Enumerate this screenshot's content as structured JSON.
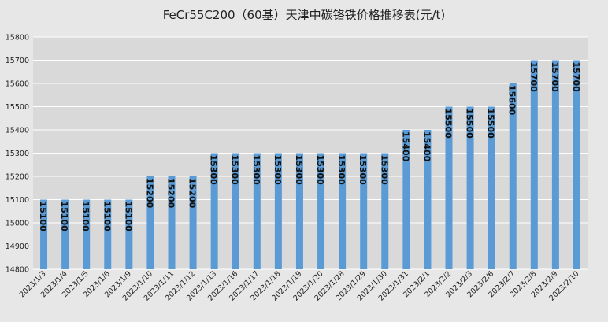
{
  "chart_data": {
    "type": "bar",
    "title": "FeCr55C200（60基）天津中碳铬铁价格推移表(元/t)",
    "xlabel": "",
    "ylabel": "",
    "ylim": [
      14800,
      15800
    ],
    "yticks": [
      14800,
      14900,
      15000,
      15100,
      15200,
      15300,
      15400,
      15500,
      15600,
      15700,
      15800
    ],
    "grid": true,
    "legend": "none",
    "bar_color": "#5b9bd5",
    "plot_background": "#d9d9d9",
    "categories": [
      "2023/1/3",
      "2023/1/4",
      "2023/1/5",
      "2023/1/6",
      "2023/1/9",
      "2023/1/10",
      "2023/1/11",
      "2023/1/12",
      "2023/1/13",
      "2023/1/16",
      "2023/1/17",
      "2023/1/18",
      "2023/1/19",
      "2023/1/20",
      "2023/1/28",
      "2023/1/29",
      "2023/1/30",
      "2023/1/31",
      "2023/2/1",
      "2023/2/2",
      "2023/2/3",
      "2023/2/6",
      "2023/2/7",
      "2023/2/8",
      "2023/2/9",
      "2023/2/10"
    ],
    "values": [
      15100,
      15100,
      15100,
      15100,
      15100,
      15200,
      15200,
      15200,
      15300,
      15300,
      15300,
      15300,
      15300,
      15300,
      15300,
      15300,
      15300,
      15400,
      15400,
      15500,
      15500,
      15500,
      15600,
      15700,
      15700,
      15700
    ]
  }
}
